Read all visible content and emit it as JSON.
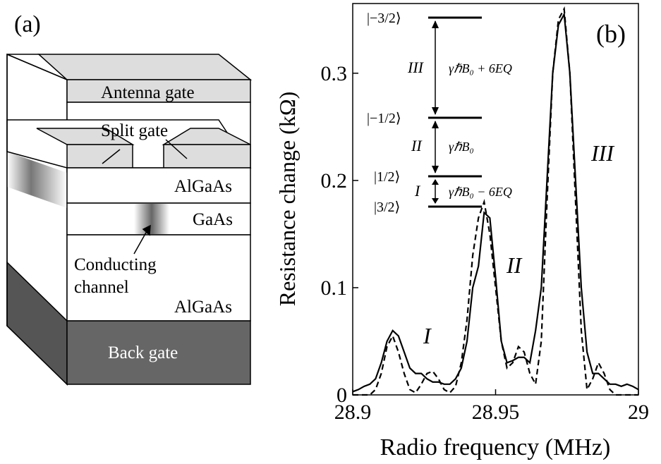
{
  "panel_a": {
    "label": "(a)",
    "layers": [
      "Antenna gate",
      "Split gate",
      "AlGaAs",
      "GaAs",
      "AlGaAs",
      "Back gate"
    ],
    "channel_label": [
      "Conducting",
      "channel"
    ]
  },
  "chart_data": {
    "type": "line",
    "panel_label": "(b)",
    "x_label": "Radio frequency (MHz)",
    "y_label": "Resistance change (kΩ)",
    "x": [
      28.9,
      28.902,
      28.904,
      28.906,
      28.908,
      28.91,
      28.912,
      28.914,
      28.916,
      28.918,
      28.92,
      28.922,
      28.924,
      28.926,
      28.928,
      28.93,
      28.932,
      28.934,
      28.936,
      28.938,
      28.94,
      28.942,
      28.944,
      28.946,
      28.948,
      28.95,
      28.952,
      28.954,
      28.956,
      28.958,
      28.96,
      28.962,
      28.964,
      28.966,
      28.968,
      28.97,
      28.972,
      28.974,
      28.976,
      28.978,
      28.98,
      28.982,
      28.984,
      28.986,
      28.988,
      28.99,
      28.992,
      28.994,
      28.996,
      28.998,
      29.0
    ],
    "series": [
      {
        "color": "#000000",
        "style": "solid",
        "values": [
          0.003,
          0.005,
          0.008,
          0.01,
          0.015,
          0.03,
          0.05,
          0.06,
          0.055,
          0.04,
          0.025,
          0.02,
          0.02,
          0.015,
          0.012,
          0.012,
          0.01,
          0.01,
          0.015,
          0.025,
          0.05,
          0.1,
          0.12,
          0.17,
          0.165,
          0.11,
          0.05,
          0.03,
          0.032,
          0.035,
          0.035,
          0.03,
          0.06,
          0.1,
          0.2,
          0.3,
          0.345,
          0.355,
          0.3,
          0.2,
          0.1,
          0.04,
          0.02,
          0.02,
          0.015,
          0.01,
          0.01,
          0.008,
          0.01,
          0.008,
          0.005
        ]
      },
      {
        "color": "#000000",
        "style": "dashed",
        "values": [
          0,
          0,
          0,
          0,
          0.005,
          0.02,
          0.045,
          0.055,
          0.04,
          0.02,
          0.005,
          0.002,
          0.01,
          0.02,
          0.022,
          0.015,
          0.005,
          0.002,
          0.008,
          0.03,
          0.07,
          0.13,
          0.165,
          0.18,
          0.15,
          0.1,
          0.05,
          0.025,
          0.03,
          0.045,
          0.04,
          0.02,
          0.01,
          0.05,
          0.18,
          0.3,
          0.35,
          0.36,
          0.3,
          0.18,
          0.06,
          0.005,
          0.015,
          0.03,
          0.02,
          0.005,
          0,
          0,
          0,
          0,
          0
        ]
      }
    ],
    "xlim": [
      28.9,
      29
    ],
    "ylim": [
      0,
      0.365
    ],
    "xticks": [
      28.9,
      28.95,
      29
    ],
    "yticks": [
      0,
      0.1,
      0.2,
      0.3
    ],
    "peak_labels": [
      "I",
      "II",
      "III"
    ],
    "levels": [
      "|−3/2⟩",
      "|−1/2⟩",
      "|1/2⟩",
      "|3/2⟩"
    ],
    "transitions": [
      {
        "label": "III",
        "energy": "γℏB₀ + 6EQ"
      },
      {
        "label": "II",
        "energy": "γℏB₀"
      },
      {
        "label": "I",
        "energy": "γℏB₀ − 6EQ"
      }
    ]
  }
}
